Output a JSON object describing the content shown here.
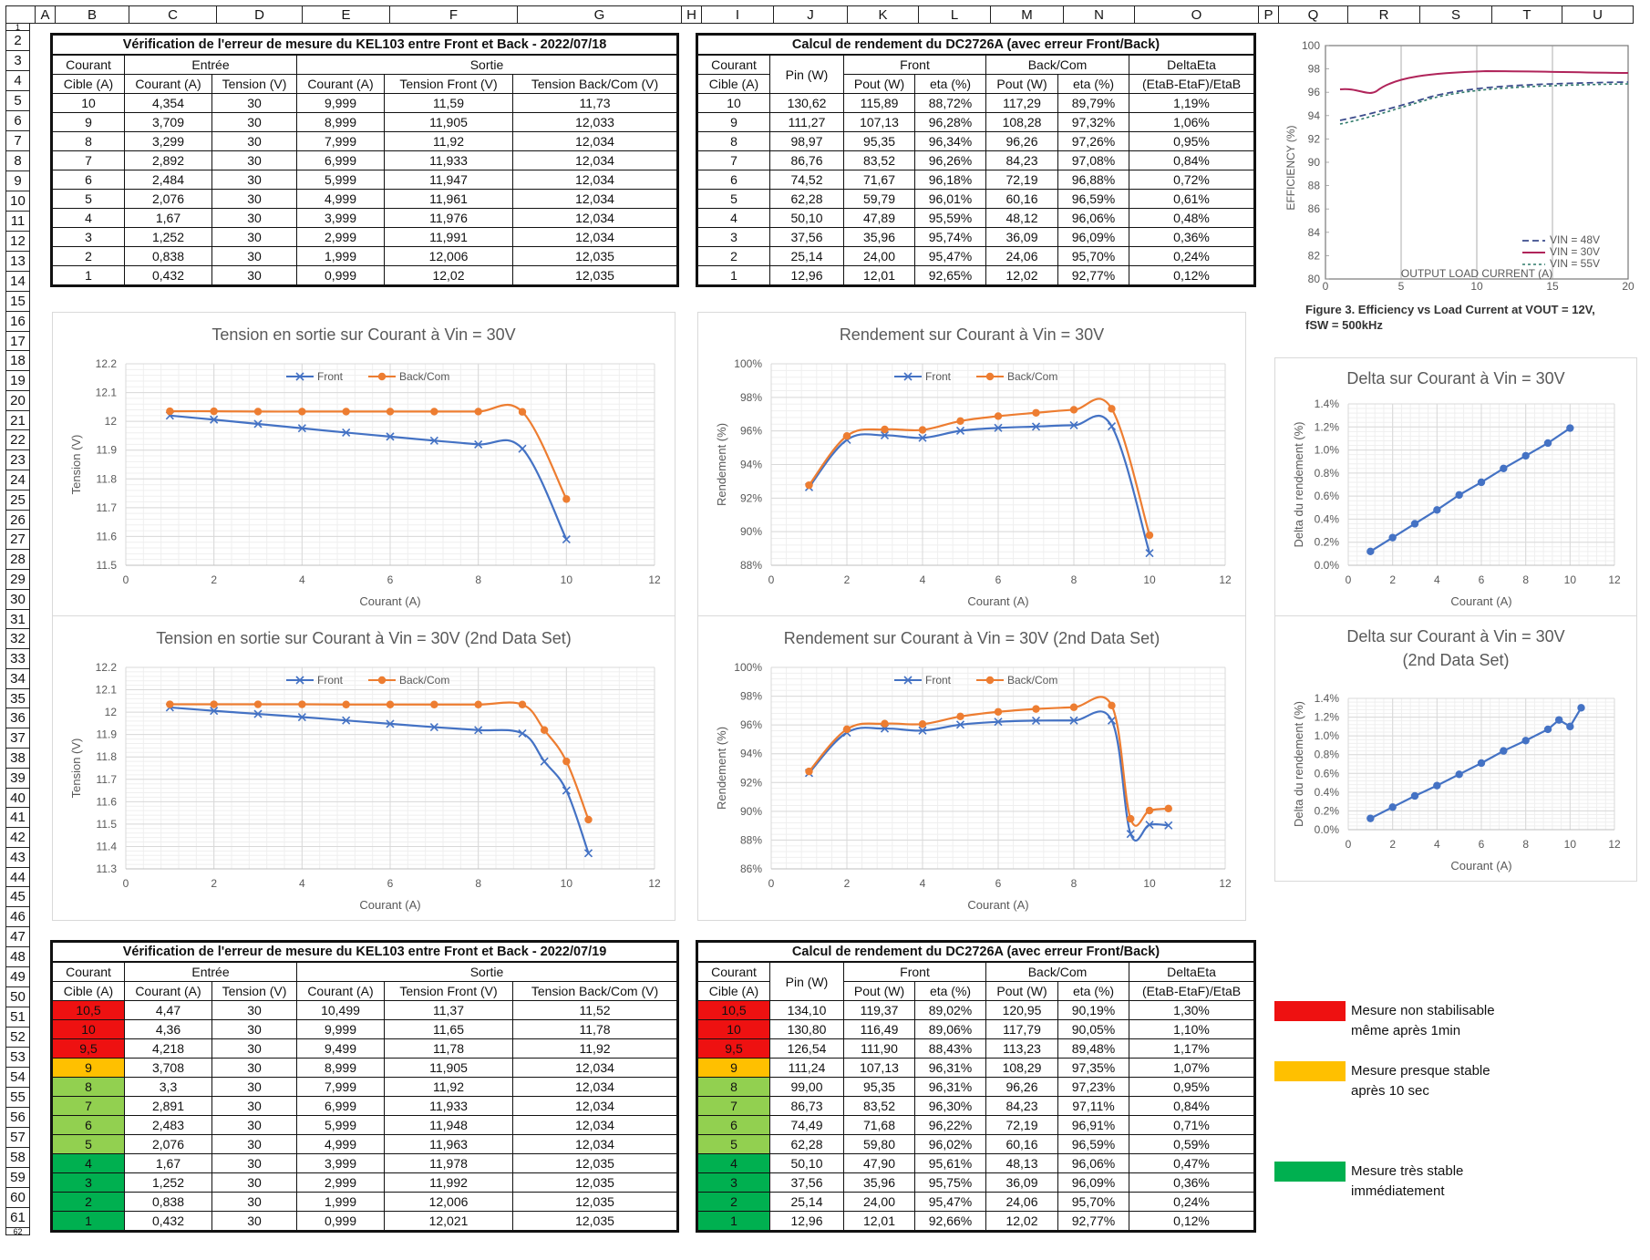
{
  "columns": [
    "",
    "A",
    "B",
    "C",
    "D",
    "E",
    "F",
    "G",
    "H",
    "I",
    "J",
    "K",
    "L",
    "M",
    "N",
    "O",
    "P",
    "Q",
    "R",
    "S",
    "T",
    "U"
  ],
  "rows": [
    "1",
    "2",
    "3",
    "4",
    "5",
    "6",
    "7",
    "8",
    "9",
    "10",
    "11",
    "12",
    "13",
    "14",
    "15",
    "16",
    "17",
    "18",
    "19",
    "20",
    "21",
    "22",
    "23",
    "24",
    "25",
    "26",
    "27",
    "28",
    "29",
    "30",
    "31",
    "32",
    "33",
    "34",
    "35",
    "36",
    "37",
    "38",
    "39",
    "40",
    "41",
    "42",
    "43",
    "44",
    "45",
    "46",
    "47",
    "48",
    "49",
    "50",
    "51",
    "52",
    "53",
    "54",
    "55",
    "56",
    "57",
    "58",
    "59",
    "60",
    "61",
    "62"
  ],
  "table1": {
    "title": "Vérification de l'erreur de mesure du KEL103 entre Front et Back - 2022/07/18",
    "h_courant": "Courant",
    "h_cible": "Cible (A)",
    "h_entree": "Entrée",
    "h_sortie": "Sortie",
    "h_courant_a": "Courant (A)",
    "h_tension_v": "Tension (V)",
    "h_courant_a2": "Courant (A)",
    "h_tension_front": "Tension Front (V)",
    "h_tension_back": "Tension Back/Com (V)",
    "rows": [
      [
        "10",
        "4,354",
        "30",
        "9,999",
        "11,59",
        "11,73"
      ],
      [
        "9",
        "3,709",
        "30",
        "8,999",
        "11,905",
        "12,033"
      ],
      [
        "8",
        "3,299",
        "30",
        "7,999",
        "11,92",
        "12,034"
      ],
      [
        "7",
        "2,892",
        "30",
        "6,999",
        "11,933",
        "12,034"
      ],
      [
        "6",
        "2,484",
        "30",
        "5,999",
        "11,947",
        "12,034"
      ],
      [
        "5",
        "2,076",
        "30",
        "4,999",
        "11,961",
        "12,034"
      ],
      [
        "4",
        "1,67",
        "30",
        "3,999",
        "11,976",
        "12,034"
      ],
      [
        "3",
        "1,252",
        "30",
        "2,999",
        "11,991",
        "12,034"
      ],
      [
        "2",
        "0,838",
        "30",
        "1,999",
        "12,006",
        "12,035"
      ],
      [
        "1",
        "0,432",
        "30",
        "0,999",
        "12,02",
        "12,035"
      ]
    ]
  },
  "table2": {
    "title": "Calcul de rendement du DC2726A (avec erreur Front/Back)",
    "h_courant": "Courant",
    "h_cible": "Cible (A)",
    "h_pin": "Pin (W)",
    "h_front": "Front",
    "h_back": "Back/Com",
    "h_delta": "DeltaEta",
    "h_pout": "Pout (W)",
    "h_eta": "eta (%)",
    "h_pout2": "Pout (W)",
    "h_eta2": "eta (%)",
    "h_formula": "(EtaB-EtaF)/EtaB",
    "rows": [
      [
        "10",
        "130,62",
        "115,89",
        "88,72%",
        "117,29",
        "89,79%",
        "1,19%"
      ],
      [
        "9",
        "111,27",
        "107,13",
        "96,28%",
        "108,28",
        "97,32%",
        "1,06%"
      ],
      [
        "8",
        "98,97",
        "95,35",
        "96,34%",
        "96,26",
        "97,26%",
        "0,95%"
      ],
      [
        "7",
        "86,76",
        "83,52",
        "96,26%",
        "84,23",
        "97,08%",
        "0,84%"
      ],
      [
        "6",
        "74,52",
        "71,67",
        "96,18%",
        "72,19",
        "96,88%",
        "0,72%"
      ],
      [
        "5",
        "62,28",
        "59,79",
        "96,01%",
        "60,16",
        "96,59%",
        "0,61%"
      ],
      [
        "4",
        "50,10",
        "47,89",
        "95,59%",
        "48,12",
        "96,06%",
        "0,48%"
      ],
      [
        "3",
        "37,56",
        "35,96",
        "95,74%",
        "36,09",
        "96,09%",
        "0,36%"
      ],
      [
        "2",
        "25,14",
        "24,00",
        "95,47%",
        "24,06",
        "95,70%",
        "0,24%"
      ],
      [
        "1",
        "12,96",
        "12,01",
        "92,65%",
        "12,02",
        "92,77%",
        "0,12%"
      ]
    ]
  },
  "table3": {
    "title": "Vérification de l'erreur de mesure du KEL103 entre Front et Back - 2022/07/19",
    "h_courant": "Courant",
    "h_cible": "Cible (A)",
    "h_entree": "Entrée",
    "h_sortie": "Sortie",
    "h_courant_a": "Courant (A)",
    "h_tension_v": "Tension (V)",
    "h_courant_a2": "Courant (A)",
    "h_tension_front": "Tension Front (V)",
    "h_tension_back": "Tension Back/Com (V)",
    "rows": [
      [
        "10,5",
        "4,47",
        "30",
        "10,499",
        "11,37",
        "11,52"
      ],
      [
        "10",
        "4,36",
        "30",
        "9,999",
        "11,65",
        "11,78"
      ],
      [
        "9,5",
        "4,218",
        "30",
        "9,499",
        "11,78",
        "11,92"
      ],
      [
        "9",
        "3,708",
        "30",
        "8,999",
        "11,905",
        "12,034"
      ],
      [
        "8",
        "3,3",
        "30",
        "7,999",
        "11,92",
        "12,034"
      ],
      [
        "7",
        "2,891",
        "30",
        "6,999",
        "11,933",
        "12,034"
      ],
      [
        "6",
        "2,483",
        "30",
        "5,999",
        "11,948",
        "12,034"
      ],
      [
        "5",
        "2,076",
        "30",
        "4,999",
        "11,963",
        "12,034"
      ],
      [
        "4",
        "1,67",
        "30",
        "3,999",
        "11,978",
        "12,035"
      ],
      [
        "3",
        "1,252",
        "30",
        "2,999",
        "11,992",
        "12,035"
      ],
      [
        "2",
        "0,838",
        "30",
        "1,999",
        "12,006",
        "12,035"
      ],
      [
        "1",
        "0,432",
        "30",
        "0,999",
        "12,021",
        "12,035"
      ]
    ],
    "row_status": [
      "red",
      "red",
      "red",
      "orange",
      "lgreen",
      "lgreen",
      "lgreen",
      "lgreen",
      "green",
      "green",
      "green",
      "green"
    ]
  },
  "table4": {
    "title": "Calcul de rendement du DC2726A (avec erreur Front/Back)",
    "h_courant": "Courant",
    "h_cible": "Cible (A)",
    "h_pin": "Pin (W)",
    "h_front": "Front",
    "h_back": "Back/Com",
    "h_delta": "DeltaEta",
    "h_pout": "Pout (W)",
    "h_eta": "eta (%)",
    "h_pout2": "Pout (W)",
    "h_eta2": "eta (%)",
    "h_formula": "(EtaB-EtaF)/EtaB",
    "rows": [
      [
        "10,5",
        "134,10",
        "119,37",
        "89,02%",
        "120,95",
        "90,19%",
        "1,30%"
      ],
      [
        "10",
        "130,80",
        "116,49",
        "89,06%",
        "117,79",
        "90,05%",
        "1,10%"
      ],
      [
        "9,5",
        "126,54",
        "111,90",
        "88,43%",
        "113,23",
        "89,48%",
        "1,17%"
      ],
      [
        "9",
        "111,24",
        "107,13",
        "96,31%",
        "108,29",
        "97,35%",
        "1,07%"
      ],
      [
        "8",
        "99,00",
        "95,35",
        "96,31%",
        "96,26",
        "97,23%",
        "0,95%"
      ],
      [
        "7",
        "86,73",
        "83,52",
        "96,30%",
        "84,23",
        "97,11%",
        "0,84%"
      ],
      [
        "6",
        "74,49",
        "71,68",
        "96,22%",
        "72,19",
        "96,91%",
        "0,71%"
      ],
      [
        "5",
        "62,28",
        "59,80",
        "96,02%",
        "60,16",
        "96,59%",
        "0,59%"
      ],
      [
        "4",
        "50,10",
        "47,90",
        "95,61%",
        "48,13",
        "96,06%",
        "0,47%"
      ],
      [
        "3",
        "37,56",
        "35,96",
        "95,75%",
        "36,09",
        "96,09%",
        "0,36%"
      ],
      [
        "2",
        "25,14",
        "24,00",
        "95,47%",
        "24,06",
        "95,70%",
        "0,24%"
      ],
      [
        "1",
        "12,96",
        "12,01",
        "92,66%",
        "12,02",
        "92,77%",
        "0,12%"
      ]
    ]
  },
  "status_legend": [
    {
      "color": "#ee1111",
      "line1": "Mesure non stabilisable",
      "line2": "même après 1min"
    },
    {
      "color": "#ffc000",
      "line1": "Mesure presque stable",
      "line2": "après 10 sec"
    },
    {
      "color": "#00b050",
      "line1": "Mesure très stable",
      "line2": "immédiatement"
    }
  ],
  "colors": {
    "front": "#4472c4",
    "back": "#ed7d31",
    "delta": "#4472c4",
    "grid": "#d9d9d9"
  },
  "datasheet": {
    "y_label": "EFFICIENCY (%)",
    "x_label": "OUTPUT LOAD CURRENT (A)",
    "y_ticks": [
      "100",
      "98",
      "96",
      "94",
      "92",
      "90",
      "88",
      "86",
      "84",
      "82",
      "80"
    ],
    "x_ticks": [
      "0",
      "5",
      "10",
      "15",
      "20"
    ],
    "legend": [
      "VIN = 48V",
      "VIN = 30V",
      "VIN = 55V"
    ],
    "caption1": "Figure 3. Efficiency vs Load Current at VOUT = 12V,",
    "caption2": "fSW = 500kHz"
  },
  "chart_data": [
    {
      "type": "line",
      "title": "Tension en sortie sur Courant à Vin = 30V",
      "xlabel": "Courant (A)",
      "ylabel": "Tension (V)",
      "xlim": [
        0,
        12
      ],
      "ylim": [
        11.5,
        12.2
      ],
      "xticks": [
        0,
        2,
        4,
        6,
        8,
        10,
        12
      ],
      "yticks": [
        11.5,
        11.6,
        11.7,
        11.8,
        11.9,
        12,
        12.1,
        12.2
      ],
      "ytick_labels": [
        "11.5",
        "11.6",
        "11.7",
        "11.8",
        "11.9",
        "12",
        "12.1",
        "12.2"
      ],
      "legend": "top-center",
      "series": [
        {
          "name": "Front",
          "marker": "x",
          "x": [
            1,
            2,
            3,
            4,
            5,
            6,
            7,
            8,
            9,
            10
          ],
          "y": [
            12.02,
            12.006,
            11.991,
            11.976,
            11.961,
            11.947,
            11.933,
            11.92,
            11.905,
            11.59
          ]
        },
        {
          "name": "Back/Com",
          "marker": "circle",
          "x": [
            1,
            2,
            3,
            4,
            5,
            6,
            7,
            8,
            9,
            10
          ],
          "y": [
            12.035,
            12.035,
            12.034,
            12.034,
            12.034,
            12.034,
            12.034,
            12.034,
            12.033,
            11.73
          ]
        }
      ]
    },
    {
      "type": "line",
      "title": "Tension en sortie sur Courant à Vin = 30V (2nd Data Set)",
      "xlabel": "Courant (A)",
      "ylabel": "Tension (V)",
      "xlim": [
        0,
        12
      ],
      "ylim": [
        11.3,
        12.2
      ],
      "xticks": [
        0,
        2,
        4,
        6,
        8,
        10,
        12
      ],
      "yticks": [
        11.3,
        11.4,
        11.5,
        11.6,
        11.7,
        11.8,
        11.9,
        12,
        12.1,
        12.2
      ],
      "ytick_labels": [
        "11.3",
        "11.4",
        "11.5",
        "11.6",
        "11.7",
        "11.8",
        "11.9",
        "12",
        "12.1",
        "12.2"
      ],
      "legend": "top-center",
      "series": [
        {
          "name": "Front",
          "marker": "x",
          "x": [
            1,
            2,
            3,
            4,
            5,
            6,
            7,
            8,
            9,
            9.5,
            10,
            10.5
          ],
          "y": [
            12.021,
            12.006,
            11.992,
            11.978,
            11.963,
            11.948,
            11.933,
            11.92,
            11.905,
            11.78,
            11.65,
            11.37
          ]
        },
        {
          "name": "Back/Com",
          "marker": "circle",
          "x": [
            1,
            2,
            3,
            4,
            5,
            6,
            7,
            8,
            9,
            9.5,
            10,
            10.5
          ],
          "y": [
            12.035,
            12.035,
            12.035,
            12.035,
            12.034,
            12.034,
            12.034,
            12.034,
            12.034,
            11.92,
            11.78,
            11.52
          ]
        }
      ]
    },
    {
      "type": "line",
      "title": "Rendement sur Courant à Vin = 30V",
      "xlabel": "Courant (A)",
      "ylabel": "Rendement (%)",
      "xlim": [
        0,
        12
      ],
      "ylim": [
        88,
        100
      ],
      "xticks": [
        0,
        2,
        4,
        6,
        8,
        10,
        12
      ],
      "yticks": [
        88,
        90,
        92,
        94,
        96,
        98,
        100
      ],
      "ytick_labels": [
        "88%",
        "90%",
        "92%",
        "94%",
        "96%",
        "98%",
        "100%"
      ],
      "legend": "top-center",
      "series": [
        {
          "name": "Front",
          "marker": "x",
          "x": [
            1,
            2,
            3,
            4,
            5,
            6,
            7,
            8,
            9,
            10
          ],
          "y": [
            92.65,
            95.47,
            95.74,
            95.59,
            96.01,
            96.18,
            96.26,
            96.34,
            96.28,
            88.72
          ]
        },
        {
          "name": "Back/Com",
          "marker": "circle",
          "x": [
            1,
            2,
            3,
            4,
            5,
            6,
            7,
            8,
            9,
            10
          ],
          "y": [
            92.77,
            95.7,
            96.09,
            96.06,
            96.59,
            96.88,
            97.08,
            97.26,
            97.32,
            89.79
          ]
        }
      ]
    },
    {
      "type": "line",
      "title": "Rendement sur Courant à Vin = 30V (2nd Data Set)",
      "xlabel": "Courant (A)",
      "ylabel": "Rendement (%)",
      "xlim": [
        0,
        12
      ],
      "ylim": [
        86,
        100
      ],
      "xticks": [
        0,
        2,
        4,
        6,
        8,
        10,
        12
      ],
      "yticks": [
        86,
        88,
        90,
        92,
        94,
        96,
        98,
        100
      ],
      "ytick_labels": [
        "86%",
        "88%",
        "90%",
        "92%",
        "94%",
        "96%",
        "98%",
        "100%"
      ],
      "legend": "top-center",
      "series": [
        {
          "name": "Front",
          "marker": "x",
          "x": [
            1,
            2,
            3,
            4,
            5,
            6,
            7,
            8,
            9,
            9.5,
            10,
            10.5
          ],
          "y": [
            92.66,
            95.47,
            95.75,
            95.61,
            96.02,
            96.22,
            96.3,
            96.31,
            96.31,
            88.43,
            89.06,
            89.02
          ]
        },
        {
          "name": "Back/Com",
          "marker": "circle",
          "x": [
            1,
            2,
            3,
            4,
            5,
            6,
            7,
            8,
            9,
            9.5,
            10,
            10.5
          ],
          "y": [
            92.77,
            95.7,
            96.09,
            96.06,
            96.59,
            96.91,
            97.11,
            97.23,
            97.35,
            89.48,
            90.05,
            90.19
          ]
        }
      ]
    },
    {
      "type": "line",
      "title": "Delta sur Courant à Vin = 30V",
      "xlabel": "Courant (A)",
      "ylabel": "Delta du rendement (%)",
      "xlim": [
        0,
        12
      ],
      "ylim": [
        0,
        1.4
      ],
      "xticks": [
        0,
        2,
        4,
        6,
        8,
        10,
        12
      ],
      "yticks": [
        0,
        0.2,
        0.4,
        0.6,
        0.8,
        1.0,
        1.2,
        1.4
      ],
      "ytick_labels": [
        "0.0%",
        "0.2%",
        "0.4%",
        "0.6%",
        "0.8%",
        "1.0%",
        "1.2%",
        "1.4%"
      ],
      "legend": "none",
      "series": [
        {
          "marker": "circle",
          "x": [
            1,
            2,
            3,
            4,
            5,
            6,
            7,
            8,
            9,
            10
          ],
          "y": [
            0.12,
            0.24,
            0.36,
            0.48,
            0.61,
            0.72,
            0.84,
            0.95,
            1.06,
            1.19
          ]
        }
      ]
    },
    {
      "type": "line",
      "title": "Delta sur Courant à Vin = 30V (2nd Data Set)",
      "xlabel": "Courant (A)",
      "ylabel": "Delta du rendement (%)",
      "xlim": [
        0,
        12
      ],
      "ylim": [
        0,
        1.4
      ],
      "xticks": [
        0,
        2,
        4,
        6,
        8,
        10,
        12
      ],
      "yticks": [
        0,
        0.2,
        0.4,
        0.6,
        0.8,
        1.0,
        1.2,
        1.4
      ],
      "ytick_labels": [
        "0.0%",
        "0.2%",
        "0.4%",
        "0.6%",
        "0.8%",
        "1.0%",
        "1.2%",
        "1.4%"
      ],
      "legend": "none",
      "series": [
        {
          "marker": "circle",
          "x": [
            1,
            2,
            3,
            4,
            5,
            6,
            7,
            8,
            9,
            9.5,
            10,
            10.5
          ],
          "y": [
            0.12,
            0.24,
            0.36,
            0.47,
            0.59,
            0.71,
            0.84,
            0.95,
            1.07,
            1.17,
            1.1,
            1.3
          ]
        }
      ]
    }
  ]
}
